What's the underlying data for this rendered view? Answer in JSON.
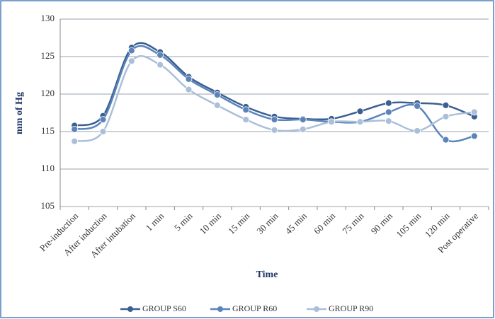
{
  "chart_data": {
    "type": "line",
    "categories": [
      "Pre-induction",
      "After induction",
      "After intubation",
      "1 min",
      "5 min",
      "10 min",
      "15 min",
      "30 min",
      "45 min",
      "60 min",
      "75 min",
      "90 min",
      "105 min",
      "120 min",
      "Post operative"
    ],
    "series": [
      {
        "name": "GROUP S60",
        "color": "#3b5f91",
        "values": [
          115.8,
          117.1,
          126.2,
          125.6,
          122.3,
          120.2,
          118.3,
          117.0,
          116.7,
          116.7,
          117.7,
          118.8,
          118.8,
          118.5,
          117.0
        ]
      },
      {
        "name": "GROUP R60",
        "color": "#5a84ba",
        "values": [
          115.3,
          116.6,
          125.8,
          125.2,
          122.0,
          119.9,
          117.9,
          116.6,
          116.6,
          116.3,
          116.3,
          117.6,
          118.4,
          113.9,
          114.4
        ]
      },
      {
        "name": "GROUP R90",
        "color": "#abbfd9",
        "values": [
          113.7,
          115.0,
          124.4,
          123.9,
          120.6,
          118.5,
          116.6,
          115.2,
          115.3,
          116.3,
          116.3,
          116.4,
          115.1,
          117.0,
          117.6
        ]
      }
    ],
    "ylim": [
      105,
      130
    ],
    "yticks": [
      105,
      110,
      115,
      120,
      125,
      130
    ],
    "grid": true,
    "ylabel": "mm of Hg",
    "xlabel": "Time",
    "legend": "bottom"
  }
}
